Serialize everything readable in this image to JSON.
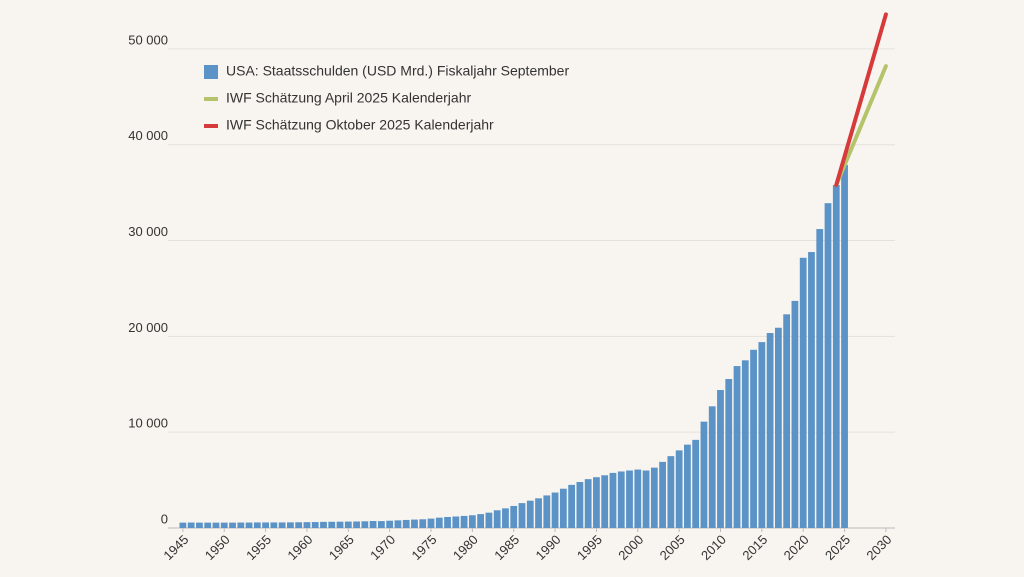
{
  "chart_data": {
    "type": "bar",
    "x": [
      1945,
      1946,
      1947,
      1948,
      1949,
      1950,
      1951,
      1952,
      1953,
      1954,
      1955,
      1956,
      1957,
      1958,
      1959,
      1960,
      1961,
      1962,
      1963,
      1964,
      1965,
      1966,
      1967,
      1968,
      1969,
      1970,
      1971,
      1972,
      1973,
      1974,
      1975,
      1976,
      1977,
      1978,
      1979,
      1980,
      1981,
      1982,
      1983,
      1984,
      1985,
      1986,
      1987,
      1988,
      1989,
      1990,
      1991,
      1992,
      1993,
      1994,
      1995,
      1996,
      1997,
      1998,
      1999,
      2000,
      2001,
      2002,
      2003,
      2004,
      2005,
      2006,
      2007,
      2008,
      2009,
      2010,
      2011,
      2012,
      2013,
      2014,
      2015,
      2016,
      2017,
      2018,
      2019,
      2020,
      2021,
      2022,
      2023,
      2024,
      2025
    ],
    "series": [
      {
        "name": "USA: Staatsschulden (USD Mrd.) Fiskaljahr September",
        "color": "#5b93c7",
        "values": [
          560,
          570,
          560,
          560,
          560,
          560,
          560,
          570,
          570,
          580,
          580,
          580,
          580,
          590,
          600,
          610,
          620,
          640,
          650,
          660,
          670,
          680,
          700,
          730,
          720,
          760,
          800,
          840,
          880,
          910,
          980,
          1080,
          1150,
          1200,
          1260,
          1330,
          1450,
          1600,
          1850,
          2050,
          2300,
          2600,
          2850,
          3100,
          3400,
          3700,
          4100,
          4500,
          4800,
          5100,
          5300,
          5500,
          5750,
          5900,
          6000,
          6100,
          6000,
          6300,
          6900,
          7500,
          8100,
          8700,
          9200,
          11100,
          12700,
          14400,
          15550,
          16900,
          17500,
          18600,
          19400,
          20350,
          20900,
          22300,
          23700,
          28200,
          28800,
          31200,
          33900,
          35800,
          37900
        ]
      },
      {
        "name": "IWF Schätzung April 2025 Kalenderjahr",
        "color": "#b5c46a",
        "type": "line",
        "x": [
          2024,
          2030
        ],
        "values": [
          35800,
          48200
        ]
      },
      {
        "name": "IWF Schätzung Oktober 2025 Kalenderjahr",
        "color": "#d63a3a",
        "type": "line",
        "x": [
          2024,
          2030
        ],
        "values": [
          35800,
          53600
        ]
      }
    ],
    "xlim": [
      1943.2,
      2031.1
    ],
    "xticks": [
      1945,
      1950,
      1955,
      1960,
      1965,
      1970,
      1975,
      1980,
      1985,
      1990,
      1995,
      2000,
      2005,
      2010,
      2015,
      2020,
      2025,
      2030
    ],
    "ylim": [
      0,
      55000
    ],
    "yticks": [
      0,
      {
        "value": 10000,
        "label": "10 000"
      },
      {
        "value": 20000,
        "label": "20 000"
      },
      {
        "value": 30000,
        "label": "30 000"
      },
      {
        "value": 40000,
        "label": "40 000"
      },
      {
        "value": 50000,
        "label": "50 000"
      }
    ],
    "grid": true
  }
}
